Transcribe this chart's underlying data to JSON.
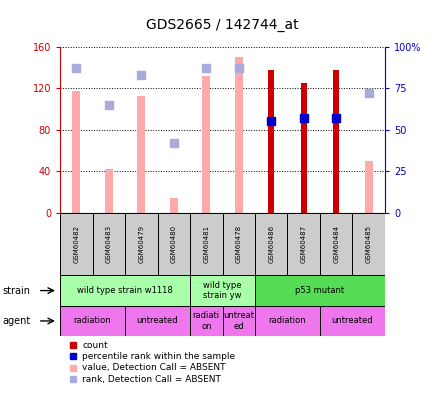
{
  "title": "GDS2665 / 142744_at",
  "samples": [
    "GSM60482",
    "GSM60483",
    "GSM60479",
    "GSM60480",
    "GSM60481",
    "GSM60478",
    "GSM60486",
    "GSM60487",
    "GSM60484",
    "GSM60485"
  ],
  "count_values": [
    null,
    null,
    null,
    null,
    null,
    null,
    137,
    125,
    137,
    null
  ],
  "percentile_rank": [
    null,
    null,
    null,
    null,
    null,
    null,
    55,
    57,
    57,
    null
  ],
  "value_absent": [
    117,
    42,
    112,
    14,
    132,
    150,
    null,
    null,
    null,
    50
  ],
  "rank_absent": [
    87,
    65,
    83,
    42,
    87,
    87,
    null,
    null,
    null,
    72
  ],
  "ylim_left": [
    0,
    160
  ],
  "ylim_right": [
    0,
    100
  ],
  "strain_groups": [
    {
      "label": "wild type strain w1118",
      "start": 0,
      "end": 4,
      "color": "#aaffaa"
    },
    {
      "label": "wild type\nstrain yw",
      "start": 4,
      "end": 6,
      "color": "#aaffaa"
    },
    {
      "label": "p53 mutant",
      "start": 6,
      "end": 10,
      "color": "#55dd55"
    }
  ],
  "agent_groups": [
    {
      "label": "radiation",
      "start": 0,
      "end": 2,
      "color": "#ee77ee"
    },
    {
      "label": "untreated",
      "start": 2,
      "end": 4,
      "color": "#ee77ee"
    },
    {
      "label": "radiati\non",
      "start": 4,
      "end": 5,
      "color": "#ee77ee"
    },
    {
      "label": "untreat\ned",
      "start": 5,
      "end": 6,
      "color": "#ee77ee"
    },
    {
      "label": "radiation",
      "start": 6,
      "end": 8,
      "color": "#ee77ee"
    },
    {
      "label": "untreated",
      "start": 8,
      "end": 10,
      "color": "#ee77ee"
    }
  ],
  "dot_size": 28,
  "color_count": "#cc0000",
  "color_rank": "#0000cc",
  "color_value_absent": "#ffaaaa",
  "color_rank_absent": "#aaaadd",
  "left_tick_color": "#cc0000",
  "right_tick_color": "#0000cc",
  "yticks_left": [
    0,
    40,
    80,
    120,
    160
  ],
  "yticks_right": [
    0,
    25,
    50,
    75,
    100
  ],
  "ytick_labels_left": [
    "0",
    "40",
    "80",
    "120",
    "160"
  ],
  "ytick_labels_right": [
    "0",
    "25",
    "50",
    "75",
    "100%"
  ]
}
